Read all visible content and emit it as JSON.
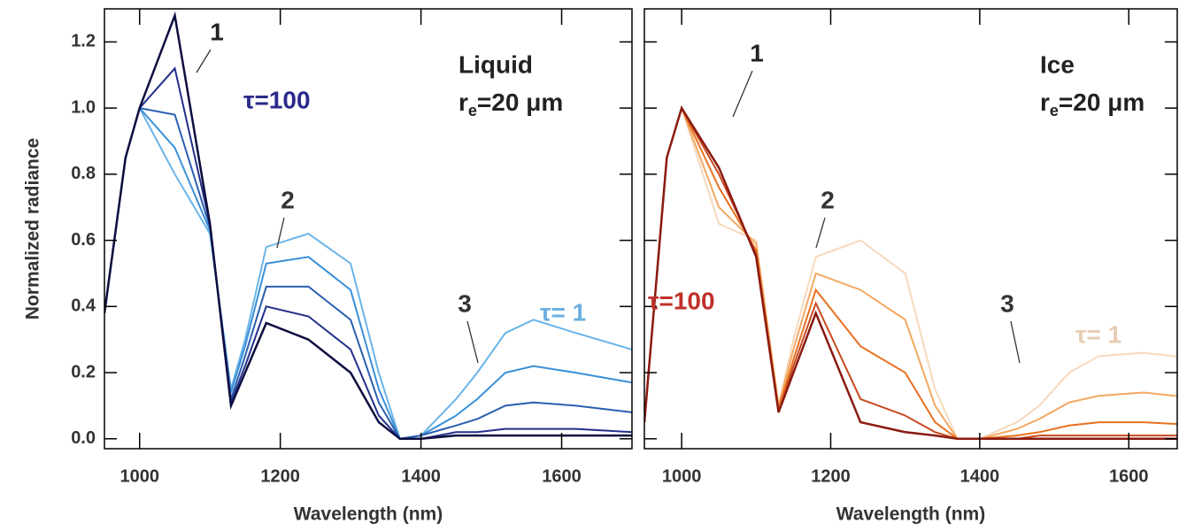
{
  "chart_data": [
    {
      "type": "line",
      "x_label": "Wavelength (nm)",
      "y_label": "Normalized radiance",
      "xlim": [
        950,
        1700
      ],
      "ylim": [
        -0.03,
        1.3
      ],
      "xticks": [
        1000,
        1200,
        1400,
        1600
      ],
      "yticks": [
        {
          "value": 0,
          "label": "0.0"
        },
        0.2,
        0.4,
        0.6,
        0.8,
        {
          "value": 1,
          "label": "1.0"
        },
        1.2
      ],
      "x": [
        950,
        980,
        1000,
        1050,
        1100,
        1130,
        1150,
        1180,
        1240,
        1300,
        1340,
        1370,
        1400,
        1450,
        1480,
        1520,
        1560,
        1620,
        1700
      ],
      "series": [
        {
          "color": "#6ab4e8",
          "values": [
            0.38,
            0.85,
            1.0,
            0.8,
            0.62,
            0.15,
            0.3,
            0.58,
            0.62,
            0.53,
            0.2,
            0.0,
            0.01,
            0.12,
            0.2,
            0.32,
            0.36,
            0.32,
            0.27
          ]
        },
        {
          "color": "#3a8fd8",
          "values": [
            0.38,
            0.85,
            1.0,
            0.88,
            0.63,
            0.14,
            0.28,
            0.53,
            0.55,
            0.45,
            0.15,
            0.0,
            0.01,
            0.07,
            0.12,
            0.2,
            0.22,
            0.2,
            0.17
          ]
        },
        {
          "color": "#2a5fb0",
          "values": [
            0.38,
            0.85,
            1.0,
            0.98,
            0.64,
            0.12,
            0.25,
            0.46,
            0.46,
            0.36,
            0.11,
            0.0,
            0.01,
            0.04,
            0.06,
            0.1,
            0.11,
            0.1,
            0.08
          ]
        },
        {
          "color": "#23308a",
          "values": [
            0.38,
            0.85,
            1.0,
            1.12,
            0.65,
            0.11,
            0.22,
            0.4,
            0.37,
            0.27,
            0.07,
            0.0,
            0.0,
            0.02,
            0.02,
            0.03,
            0.03,
            0.03,
            0.02
          ]
        },
        {
          "color": "#0d0d40",
          "values": [
            0.38,
            0.85,
            1.0,
            1.28,
            0.65,
            0.1,
            0.2,
            0.35,
            0.3,
            0.2,
            0.05,
            0.0,
            0.0,
            0.01,
            0.01,
            0.01,
            0.01,
            0.01,
            0.01
          ]
        }
      ],
      "annotations": [
        {
          "text": "1",
          "color": "#222"
        },
        {
          "text": "2",
          "color": "#333"
        },
        {
          "text": "3",
          "color": "#333"
        },
        {
          "text": "Liquid",
          "color": "#222"
        },
        {
          "text": "τ=100",
          "color": "#2a2a8a"
        },
        {
          "text": "τ= 1",
          "color": "#6ab0e0"
        }
      ],
      "re_label": {
        "base": "r",
        "sub": "e",
        "tail": "=20 μm"
      }
    },
    {
      "type": "line",
      "x_label": "Wavelength (nm)",
      "xlim": [
        950,
        1665
      ],
      "ylim": [
        -0.03,
        1.3
      ],
      "xticks": [
        1000,
        1200,
        1400,
        1600
      ],
      "yticks": [
        {
          "value": 0,
          "label": "0.0"
        },
        0.2,
        0.4,
        0.6,
        0.8,
        {
          "value": 1,
          "label": "1.0"
        },
        1.2
      ],
      "x": [
        950,
        980,
        1000,
        1050,
        1100,
        1130,
        1150,
        1180,
        1240,
        1300,
        1340,
        1370,
        1400,
        1450,
        1480,
        1520,
        1560,
        1620,
        1700
      ],
      "series": [
        {
          "color": "#f6d9bd",
          "values": [
            0.05,
            0.85,
            1.0,
            0.65,
            0.6,
            0.1,
            0.3,
            0.55,
            0.6,
            0.5,
            0.15,
            0.0,
            0.0,
            0.05,
            0.1,
            0.2,
            0.25,
            0.26,
            0.24
          ]
        },
        {
          "color": "#f3a860",
          "values": [
            0.05,
            0.85,
            1.0,
            0.7,
            0.59,
            0.1,
            0.27,
            0.5,
            0.45,
            0.36,
            0.1,
            0.0,
            0.0,
            0.03,
            0.06,
            0.11,
            0.13,
            0.14,
            0.12
          ]
        },
        {
          "color": "#e87020",
          "values": [
            0.05,
            0.85,
            1.0,
            0.76,
            0.57,
            0.09,
            0.24,
            0.45,
            0.28,
            0.2,
            0.05,
            0.0,
            0.0,
            0.01,
            0.02,
            0.04,
            0.05,
            0.05,
            0.04
          ]
        },
        {
          "color": "#c84a20",
          "values": [
            0.05,
            0.85,
            1.0,
            0.8,
            0.56,
            0.08,
            0.22,
            0.41,
            0.12,
            0.07,
            0.02,
            0.0,
            0.0,
            0.0,
            0.01,
            0.01,
            0.01,
            0.01,
            0.01
          ]
        },
        {
          "color": "#8a1a10",
          "values": [
            0.05,
            0.85,
            1.0,
            0.82,
            0.55,
            0.08,
            0.2,
            0.38,
            0.05,
            0.02,
            0.01,
            0.0,
            0.0,
            0.0,
            0.0,
            0.0,
            0.0,
            0.0,
            0.0
          ]
        }
      ],
      "annotations": [
        {
          "text": "1",
          "color": "#222"
        },
        {
          "text": "2",
          "color": "#333"
        },
        {
          "text": "3",
          "color": "#333"
        },
        {
          "text": "Ice",
          "color": "#222"
        },
        {
          "text": "τ=100",
          "color": "#c0302a"
        },
        {
          "text": "τ= 1",
          "color": "#e8cdb5"
        }
      ],
      "re_label": {
        "base": "r",
        "sub": "e",
        "tail": "=20 μm"
      }
    }
  ]
}
